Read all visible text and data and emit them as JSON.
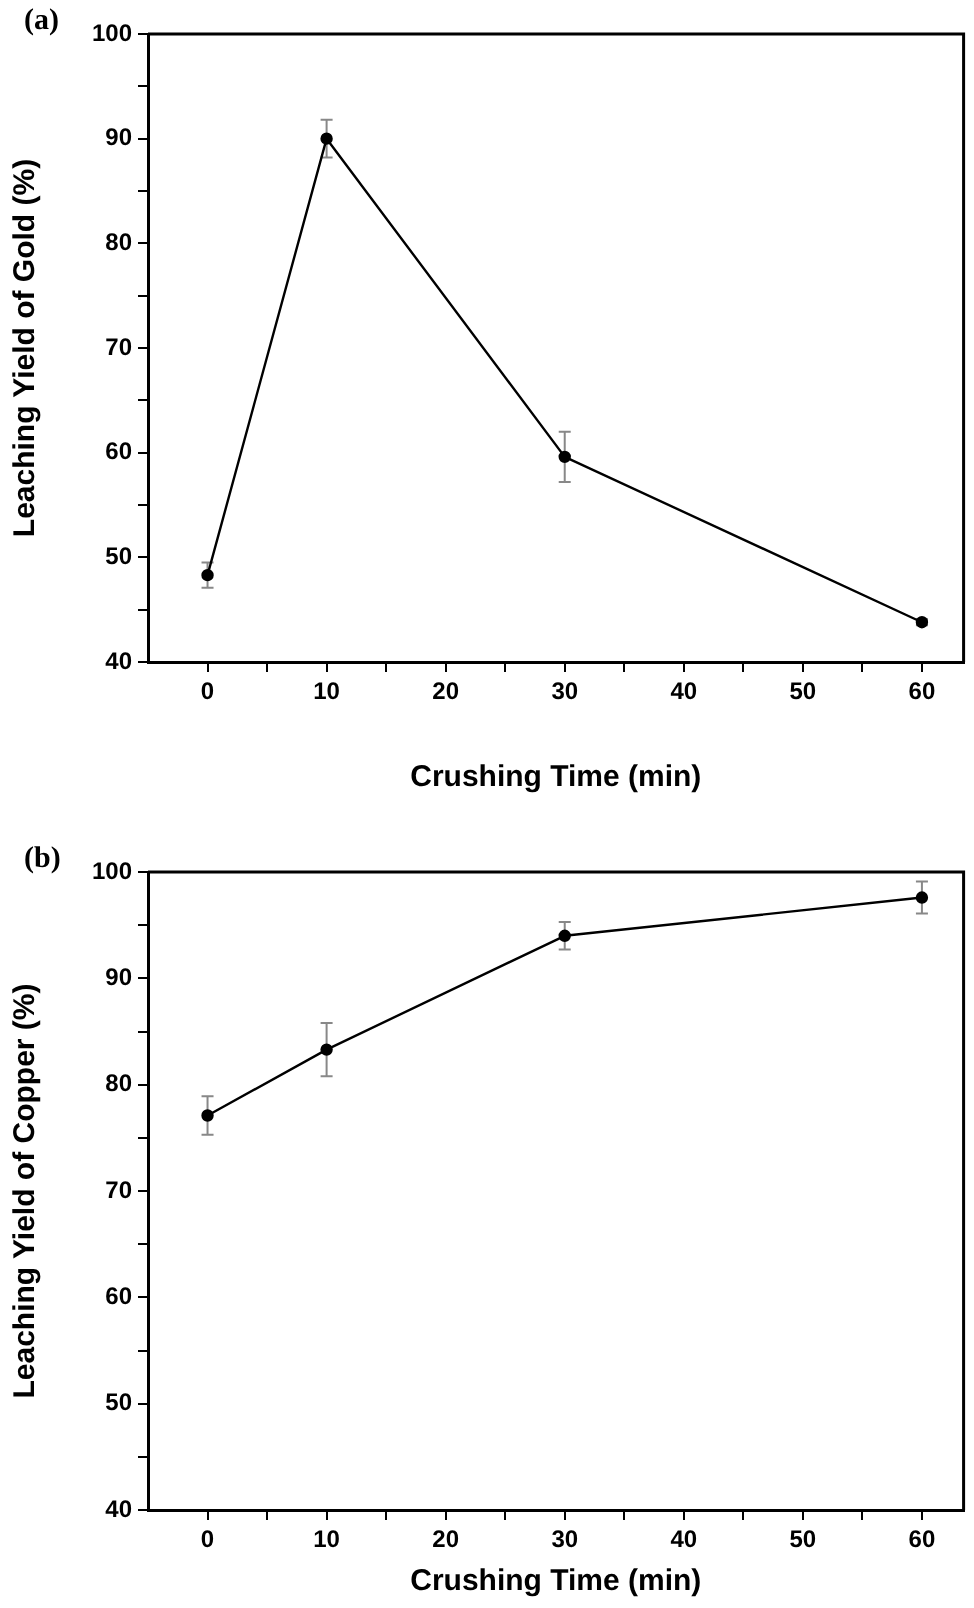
{
  "chart_data": [
    {
      "type": "line",
      "title": "(a)",
      "xlabel": "Crushing Time (min)",
      "ylabel": "Leaching Yield of Gold (%)",
      "x": [
        0,
        10,
        30,
        60
      ],
      "values": [
        48.3,
        90.0,
        59.6,
        43.8
      ],
      "errors": [
        1.2,
        1.8,
        2.4,
        0.3
      ],
      "color": "#000000",
      "marker": "circle",
      "xlim": [
        -5,
        63.5
      ],
      "xticks": [
        0,
        {
          "value": 5,
          "label": null
        },
        10,
        {
          "value": 15,
          "label": null
        },
        20,
        {
          "value": 25,
          "label": null
        },
        30,
        {
          "value": 35,
          "label": null
        },
        40,
        {
          "value": 45,
          "label": null
        },
        50,
        {
          "value": 55,
          "label": null
        },
        60
      ],
      "ylim": [
        40,
        100
      ],
      "yticks": [
        40,
        {
          "value": 45,
          "label": null
        },
        50,
        {
          "value": 55,
          "label": null
        },
        60,
        {
          "value": 65,
          "label": null
        },
        70,
        {
          "value": 75,
          "label": null
        },
        80,
        {
          "value": 85,
          "label": null
        },
        90,
        {
          "value": 95,
          "label": null
        },
        100
      ]
    },
    {
      "type": "line",
      "title": "(b)",
      "xlabel": "Crushing Time (min)",
      "ylabel": "Leaching Yield of Copper (%)",
      "x": [
        0,
        10,
        30,
        60
      ],
      "values": [
        77.1,
        83.3,
        94.0,
        97.6
      ],
      "errors": [
        1.8,
        2.5,
        1.3,
        1.5
      ],
      "color": "#000000",
      "marker": "circle",
      "xlim": [
        -5,
        63.5
      ],
      "xticks": [
        0,
        {
          "value": 5,
          "label": null
        },
        10,
        {
          "value": 15,
          "label": null
        },
        20,
        {
          "value": 25,
          "label": null
        },
        30,
        {
          "value": 35,
          "label": null
        },
        40,
        {
          "value": 45,
          "label": null
        },
        50,
        {
          "value": 55,
          "label": null
        },
        60
      ],
      "ylim": [
        40,
        100
      ],
      "yticks": [
        40,
        {
          "value": 45,
          "label": null
        },
        50,
        {
          "value": 55,
          "label": null
        },
        60,
        {
          "value": 65,
          "label": null
        },
        70,
        {
          "value": 75,
          "label": null
        },
        80,
        {
          "value": 85,
          "label": null
        },
        90,
        {
          "value": 95,
          "label": null
        },
        100
      ]
    }
  ]
}
